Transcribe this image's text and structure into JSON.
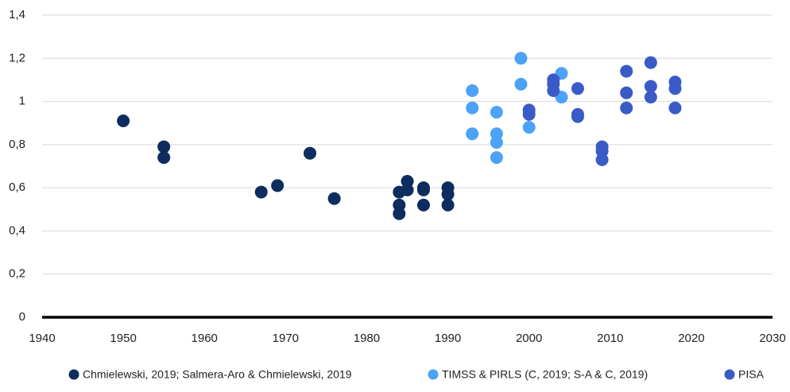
{
  "chart_data": {
    "type": "scatter",
    "xlim": [
      1940,
      2030
    ],
    "xticks": [
      1940,
      1950,
      1960,
      1970,
      1980,
      1990,
      2000,
      2010,
      2020,
      2030
    ],
    "ylim": [
      0,
      1.4
    ],
    "yticks": [
      0,
      {
        "value": 0.2,
        "label": "0,2"
      },
      {
        "value": 0.4,
        "label": "0,4"
      },
      {
        "value": 0.6,
        "label": "0,6"
      },
      {
        "value": 0.8,
        "label": "0,8"
      },
      1,
      {
        "value": 1.2,
        "label": "1,2"
      },
      {
        "value": 1.4,
        "label": "1,4"
      }
    ],
    "grid": true,
    "legend": "bottom",
    "series": [
      {
        "name": "Chmielewski, 2019; Salmera-Aro & Chmielewski, 2019",
        "color": "#0c2d5e",
        "x": [
          1950,
          1955,
          1955,
          1967,
          1969,
          1973,
          1976,
          1984,
          1984,
          1984,
          1985,
          1985,
          1987,
          1987,
          1987,
          1990,
          1990,
          1990
        ],
        "values": [
          0.91,
          0.79,
          0.74,
          0.58,
          0.61,
          0.76,
          0.55,
          0.58,
          0.52,
          0.48,
          0.63,
          0.59,
          0.6,
          0.59,
          0.52,
          0.6,
          0.57,
          0.52
        ]
      },
      {
        "name": "TIMSS & PIRLS (C, 2019; S-A & C, 2019)",
        "color": "#4ba2f6",
        "x": [
          1993,
          1993,
          1993,
          1996,
          1996,
          1996,
          1996,
          1999,
          1999,
          2000,
          2004,
          2004
        ],
        "values": [
          1.05,
          0.97,
          0.85,
          0.95,
          0.85,
          0.81,
          0.74,
          1.2,
          1.08,
          0.88,
          1.13,
          1.02
        ]
      },
      {
        "name": "PISA",
        "color": "#3a5bc7",
        "x": [
          2000,
          2000,
          2003,
          2003,
          2003,
          2006,
          2006,
          2006,
          2009,
          2009,
          2009,
          2012,
          2012,
          2012,
          2015,
          2015,
          2015,
          2018,
          2018,
          2018
        ],
        "values": [
          0.96,
          0.94,
          1.1,
          1.08,
          1.05,
          1.06,
          0.94,
          0.93,
          0.79,
          0.77,
          0.73,
          1.14,
          1.04,
          0.97,
          1.18,
          1.07,
          1.02,
          1.09,
          1.06,
          0.97
        ]
      }
    ]
  }
}
